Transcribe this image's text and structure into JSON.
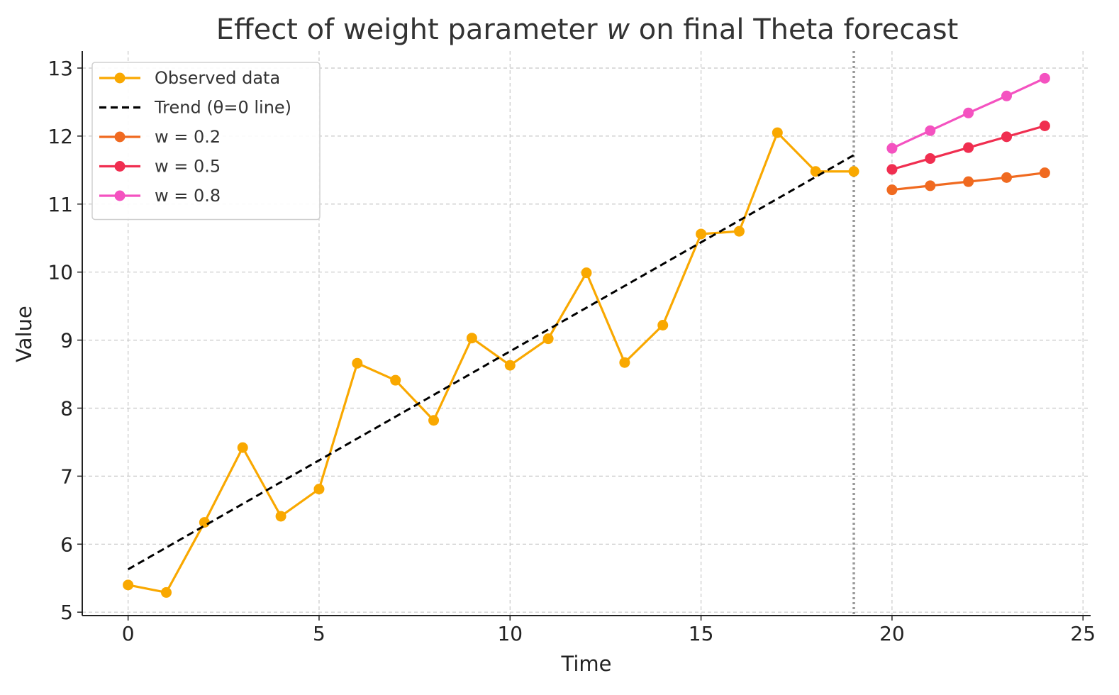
{
  "chart_data": {
    "type": "line",
    "title_prefix": "Effect of weight parameter ",
    "title_symbol": "w",
    "title_suffix": " on final Theta forecast",
    "xlabel": "Time",
    "ylabel": "Value",
    "xlim": [
      -1.2,
      25.2
    ],
    "ylim": [
      4.95,
      13.25
    ],
    "xticks": [
      0,
      5,
      10,
      15,
      20,
      25
    ],
    "yticks": [
      5,
      6,
      7,
      8,
      9,
      10,
      11,
      12,
      13
    ],
    "grid": true,
    "legend_position": "top-left",
    "forecast_origin_x": 19,
    "forecast_origin_color": "#999999",
    "series": [
      {
        "name": "Observed data",
        "color": "#F9A800",
        "style": "line-marker",
        "x": [
          0,
          1,
          2,
          3,
          4,
          5,
          6,
          7,
          8,
          9,
          10,
          11,
          12,
          13,
          14,
          15,
          16,
          17,
          18,
          19
        ],
        "y": [
          5.4,
          5.29,
          6.32,
          7.42,
          6.41,
          6.81,
          8.66,
          8.41,
          7.82,
          9.03,
          8.63,
          9.02,
          9.99,
          8.67,
          9.22,
          10.56,
          10.6,
          12.05,
          11.48,
          11.48
        ]
      },
      {
        "name": "Trend (θ=0 line)",
        "color": "#000000",
        "style": "dashed",
        "x": [
          0,
          19
        ],
        "y": [
          5.63,
          11.72
        ]
      },
      {
        "name": "w = 0.2",
        "color": "#F06A20",
        "style": "line-marker",
        "x": [
          20,
          21,
          22,
          23,
          24
        ],
        "y": [
          11.21,
          11.27,
          11.33,
          11.39,
          11.46
        ]
      },
      {
        "name": "w = 0.5",
        "color": "#F02E50",
        "style": "line-marker",
        "x": [
          20,
          21,
          22,
          23,
          24
        ],
        "y": [
          11.51,
          11.67,
          11.83,
          11.99,
          12.15
        ]
      },
      {
        "name": "w = 0.8",
        "color": "#F452C0",
        "style": "line-marker",
        "x": [
          20,
          21,
          22,
          23,
          24
        ],
        "y": [
          11.82,
          12.08,
          12.34,
          12.59,
          12.85
        ]
      }
    ]
  }
}
